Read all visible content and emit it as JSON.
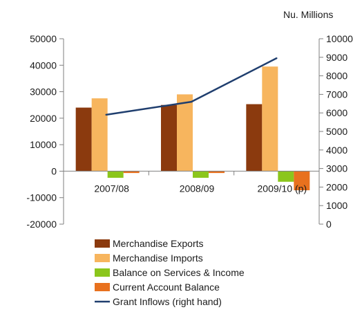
{
  "chart_data": {
    "type": "bar",
    "unit_label": "Nu. Millions",
    "categories": [
      "2007/08",
      "2008/09",
      "2009/10 (p)"
    ],
    "series": [
      {
        "name": "Merchandise Exports",
        "color": "#8B3A0E",
        "axis": "left",
        "values": [
          24000,
          25000,
          25300
        ]
      },
      {
        "name": "Merchandise Imports",
        "color": "#F7B55E",
        "axis": "left",
        "values": [
          27500,
          29000,
          39500
        ]
      },
      {
        "name": "Balance on Services & Income",
        "color": "#8BC61C",
        "axis": "left",
        "values": [
          -2500,
          -2500,
          -4000
        ]
      },
      {
        "name": "Current Account Balance",
        "color": "#E8711E",
        "axis": "left",
        "values": [
          -700,
          -700,
          -7200
        ]
      },
      {
        "name": "Grant Inflows (right hand)",
        "color": "#1F3E6E",
        "axis": "right",
        "type": "line",
        "values": [
          5900,
          6600,
          8950
        ]
      }
    ],
    "left_axis": {
      "ylim": [
        -20000,
        50000
      ],
      "ticks": [
        "-20000",
        "-10000",
        "0",
        "10000",
        "20000",
        "30000",
        "40000",
        "50000"
      ]
    },
    "right_axis": {
      "ylim": [
        0,
        10000
      ],
      "ticks": [
        "0",
        "1000",
        "2000",
        "3000",
        "4000",
        "5000",
        "6000",
        "7000",
        "8000",
        "9000",
        "10000"
      ]
    },
    "legend_position": "bottom",
    "grid": false
  }
}
